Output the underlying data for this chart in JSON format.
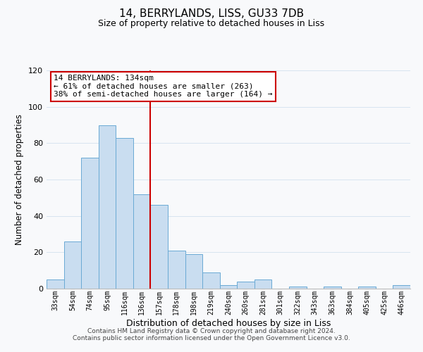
{
  "title": "14, BERRYLANDS, LISS, GU33 7DB",
  "subtitle": "Size of property relative to detached houses in Liss",
  "xlabel": "Distribution of detached houses by size in Liss",
  "ylabel": "Number of detached properties",
  "bar_labels": [
    "33sqm",
    "54sqm",
    "74sqm",
    "95sqm",
    "116sqm",
    "136sqm",
    "157sqm",
    "178sqm",
    "198sqm",
    "219sqm",
    "240sqm",
    "260sqm",
    "281sqm",
    "301sqm",
    "322sqm",
    "343sqm",
    "363sqm",
    "384sqm",
    "405sqm",
    "425sqm",
    "446sqm"
  ],
  "bar_values": [
    5,
    26,
    72,
    90,
    83,
    52,
    46,
    21,
    19,
    9,
    2,
    4,
    5,
    0,
    1,
    0,
    1,
    0,
    1,
    0,
    2
  ],
  "bar_color": "#c9ddf0",
  "bar_edge_color": "#6aaad4",
  "red_line_index": 5,
  "annotation_title": "14 BERRYLANDS: 134sqm",
  "annotation_line1": "← 61% of detached houses are smaller (263)",
  "annotation_line2": "38% of semi-detached houses are larger (164) →",
  "annotation_box_color": "#ffffff",
  "annotation_box_edge": "#cc0000",
  "ylim": [
    0,
    120
  ],
  "yticks": [
    0,
    20,
    40,
    60,
    80,
    100,
    120
  ],
  "footer1": "Contains HM Land Registry data © Crown copyright and database right 2024.",
  "footer2": "Contains public sector information licensed under the Open Government Licence v3.0.",
  "bg_color": "#f8f9fb",
  "grid_color": "#d8e4f0"
}
